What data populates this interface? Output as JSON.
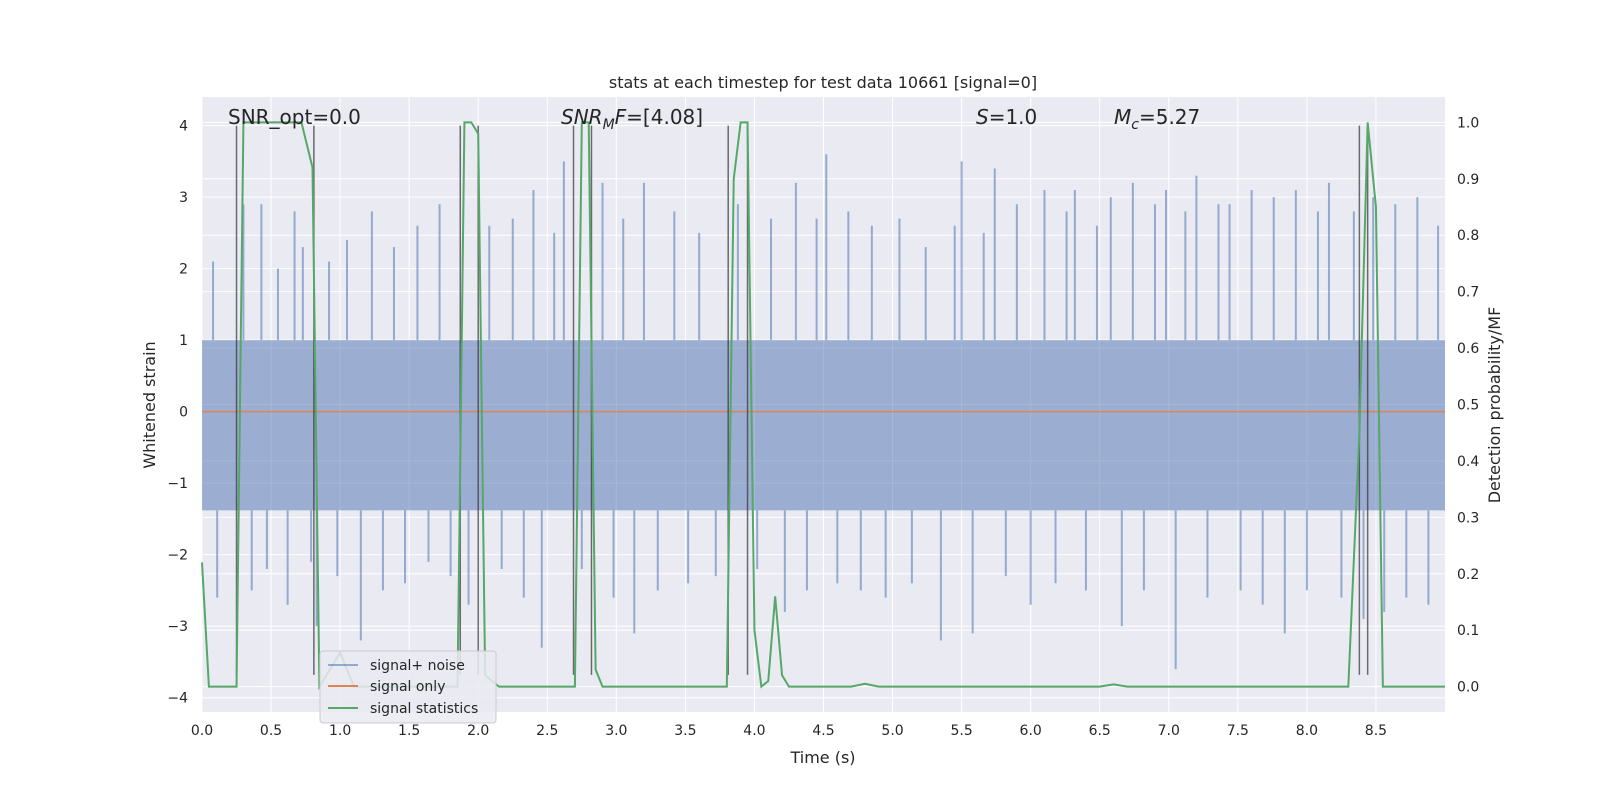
{
  "chart_data": {
    "type": "line",
    "title": "stats at each timestep for test data 10661 [signal=0]",
    "xlabel": "Time (s)",
    "ylabel_left": "Whitened strain",
    "ylabel_right": "Detection probability/MF",
    "xlim": [
      0.0,
      9.0
    ],
    "ylim_left": [
      -4.2,
      4.4
    ],
    "ylim_right": [
      -0.045,
      1.045
    ],
    "x_ticks": [
      0.0,
      0.5,
      1.0,
      1.5,
      2.0,
      2.5,
      3.0,
      3.5,
      4.0,
      4.5,
      5.0,
      5.5,
      6.0,
      6.5,
      7.0,
      7.5,
      8.0,
      8.5
    ],
    "x_tick_labels": [
      "0.0",
      "0.5",
      "1.0",
      "1.5",
      "2.0",
      "2.5",
      "3.0",
      "3.5",
      "4.0",
      "4.5",
      "5.0",
      "5.5",
      "6.0",
      "6.5",
      "7.0",
      "7.5",
      "8.0",
      "8.5"
    ],
    "y_left_ticks": [
      -4,
      -3,
      -2,
      -1,
      0,
      1,
      2,
      3,
      4
    ],
    "y_left_tick_labels": [
      "−4",
      "−3",
      "−2",
      "−1",
      "0",
      "1",
      "2",
      "3",
      "4"
    ],
    "y_right_ticks": [
      0.0,
      0.1,
      0.2,
      0.3,
      0.4,
      0.5,
      0.6,
      0.7,
      0.8,
      0.9,
      1.0
    ],
    "y_right_tick_labels": [
      "0.0",
      "0.1",
      "0.2",
      "0.3",
      "0.4",
      "0.5",
      "0.6",
      "0.7",
      "0.8",
      "0.9",
      "1.0"
    ],
    "annotations": [
      {
        "text": "SNR_opt=0.0",
        "x": 0.2,
        "y": 4.05
      },
      {
        "text_main": "SNR",
        "text_sub": "M",
        "text_rest": "F=[4.08]",
        "x": 2.6,
        "y": 4.05
      },
      {
        "text_main": "S",
        "text_rest": "=1.0",
        "x": 5.6,
        "y": 4.05
      },
      {
        "text_main": "M",
        "text_sub": "c",
        "text_rest": "=5.27",
        "x": 6.6,
        "y": 4.05
      }
    ],
    "vlines": [
      0.25,
      0.81,
      1.87,
      2.0,
      2.69,
      2.82,
      3.81,
      3.95,
      8.38,
      8.44
    ],
    "series": [
      {
        "name": "signal+ noise",
        "color": "#4c72b0",
        "band_low": -1.38,
        "band_high": 1.0,
        "spikes": [
          {
            "t": 0.08,
            "v": 2.1
          },
          {
            "t": 0.11,
            "v": -2.6
          },
          {
            "t": 0.3,
            "v": 2.9
          },
          {
            "t": 0.36,
            "v": -2.5
          },
          {
            "t": 0.43,
            "v": 2.9
          },
          {
            "t": 0.47,
            "v": -2.2
          },
          {
            "t": 0.55,
            "v": 2.0
          },
          {
            "t": 0.62,
            "v": -2.7
          },
          {
            "t": 0.67,
            "v": 2.8
          },
          {
            "t": 0.73,
            "v": 2.3
          },
          {
            "t": 0.79,
            "v": -2.1
          },
          {
            "t": 0.83,
            "v": -3.0
          },
          {
            "t": 0.92,
            "v": 2.1
          },
          {
            "t": 0.98,
            "v": -2.3
          },
          {
            "t": 1.05,
            "v": 2.4
          },
          {
            "t": 1.15,
            "v": -3.2
          },
          {
            "t": 1.23,
            "v": 2.8
          },
          {
            "t": 1.31,
            "v": -2.5
          },
          {
            "t": 1.39,
            "v": 2.3
          },
          {
            "t": 1.47,
            "v": -2.4
          },
          {
            "t": 1.56,
            "v": 2.6
          },
          {
            "t": 1.64,
            "v": -2.1
          },
          {
            "t": 1.72,
            "v": 2.9
          },
          {
            "t": 1.8,
            "v": -2.3
          },
          {
            "t": 1.93,
            "v": -2.7
          },
          {
            "t": 2.08,
            "v": 2.6
          },
          {
            "t": 2.17,
            "v": -2.2
          },
          {
            "t": 2.25,
            "v": 2.7
          },
          {
            "t": 2.33,
            "v": -2.6
          },
          {
            "t": 2.4,
            "v": 3.1
          },
          {
            "t": 2.46,
            "v": -3.3
          },
          {
            "t": 2.55,
            "v": 2.5
          },
          {
            "t": 2.62,
            "v": 3.5
          },
          {
            "t": 2.75,
            "v": -2.2
          },
          {
            "t": 2.9,
            "v": 3.2
          },
          {
            "t": 2.98,
            "v": -2.6
          },
          {
            "t": 3.05,
            "v": 2.7
          },
          {
            "t": 3.13,
            "v": -3.1
          },
          {
            "t": 3.2,
            "v": 3.2
          },
          {
            "t": 3.3,
            "v": -2.5
          },
          {
            "t": 3.42,
            "v": 2.8
          },
          {
            "t": 3.52,
            "v": -2.4
          },
          {
            "t": 3.6,
            "v": 2.5
          },
          {
            "t": 3.72,
            "v": -2.3
          },
          {
            "t": 3.88,
            "v": 2.9
          },
          {
            "t": 4.02,
            "v": -2.2
          },
          {
            "t": 4.12,
            "v": 2.7
          },
          {
            "t": 4.22,
            "v": -2.8
          },
          {
            "t": 4.3,
            "v": 3.2
          },
          {
            "t": 4.38,
            "v": -2.5
          },
          {
            "t": 4.45,
            "v": 2.7
          },
          {
            "t": 4.52,
            "v": 3.6
          },
          {
            "t": 4.6,
            "v": -2.4
          },
          {
            "t": 4.68,
            "v": 2.8
          },
          {
            "t": 4.77,
            "v": -2.5
          },
          {
            "t": 4.85,
            "v": 2.6
          },
          {
            "t": 4.95,
            "v": -2.6
          },
          {
            "t": 5.05,
            "v": 2.7
          },
          {
            "t": 5.14,
            "v": -2.4
          },
          {
            "t": 5.24,
            "v": 2.3
          },
          {
            "t": 5.35,
            "v": -3.2
          },
          {
            "t": 5.45,
            "v": 2.6
          },
          {
            "t": 5.5,
            "v": 3.5
          },
          {
            "t": 5.58,
            "v": -3.1
          },
          {
            "t": 5.66,
            "v": 2.5
          },
          {
            "t": 5.74,
            "v": 3.4
          },
          {
            "t": 5.82,
            "v": -2.3
          },
          {
            "t": 5.9,
            "v": 2.9
          },
          {
            "t": 6.0,
            "v": -2.7
          },
          {
            "t": 6.1,
            "v": 3.1
          },
          {
            "t": 6.18,
            "v": -2.4
          },
          {
            "t": 6.26,
            "v": 2.8
          },
          {
            "t": 6.32,
            "v": 3.1
          },
          {
            "t": 6.4,
            "v": -2.5
          },
          {
            "t": 6.48,
            "v": 2.6
          },
          {
            "t": 6.58,
            "v": 3.0
          },
          {
            "t": 6.66,
            "v": -3.0
          },
          {
            "t": 6.74,
            "v": 3.2
          },
          {
            "t": 6.82,
            "v": -2.5
          },
          {
            "t": 6.9,
            "v": 2.9
          },
          {
            "t": 6.98,
            "v": 3.1
          },
          {
            "t": 7.05,
            "v": -3.6
          },
          {
            "t": 7.12,
            "v": 2.8
          },
          {
            "t": 7.2,
            "v": 3.3
          },
          {
            "t": 7.28,
            "v": -2.6
          },
          {
            "t": 7.36,
            "v": 2.9
          },
          {
            "t": 7.44,
            "v": 2.9
          },
          {
            "t": 7.52,
            "v": -2.5
          },
          {
            "t": 7.6,
            "v": 3.1
          },
          {
            "t": 7.68,
            "v": -2.7
          },
          {
            "t": 7.76,
            "v": 3.0
          },
          {
            "t": 7.84,
            "v": -3.1
          },
          {
            "t": 7.92,
            "v": 3.1
          },
          {
            "t": 8.0,
            "v": -2.5
          },
          {
            "t": 8.08,
            "v": 2.8
          },
          {
            "t": 8.16,
            "v": 3.2
          },
          {
            "t": 8.25,
            "v": -2.6
          },
          {
            "t": 8.34,
            "v": 2.8
          },
          {
            "t": 8.41,
            "v": -2.9
          },
          {
            "t": 8.48,
            "v": 3.0
          },
          {
            "t": 8.56,
            "v": -2.8
          },
          {
            "t": 8.64,
            "v": 2.9
          },
          {
            "t": 8.72,
            "v": -2.6
          },
          {
            "t": 8.8,
            "v": 3.0
          },
          {
            "t": 8.88,
            "v": -2.7
          },
          {
            "t": 8.95,
            "v": 2.6
          }
        ]
      },
      {
        "name": "signal only",
        "color": "#dd8452",
        "x": [
          0.0,
          9.0
        ],
        "y": [
          0.0,
          0.0
        ]
      },
      {
        "name": "signal statistics",
        "color": "#55a868",
        "axis": "right",
        "x": [
          0.0,
          0.05,
          0.25,
          0.3,
          0.4,
          0.5,
          0.6,
          0.72,
          0.8,
          0.85,
          1.0,
          1.1,
          1.85,
          1.9,
          1.95,
          2.0,
          2.05,
          2.15,
          2.3,
          2.5,
          2.7,
          2.75,
          2.8,
          2.85,
          2.9,
          3.0,
          3.5,
          3.8,
          3.85,
          3.9,
          3.95,
          4.0,
          4.05,
          4.1,
          4.15,
          4.2,
          4.25,
          4.3,
          4.5,
          4.7,
          4.8,
          4.9,
          5.0,
          6.5,
          6.6,
          6.7,
          7.0,
          8.0,
          8.3,
          8.38,
          8.44,
          8.5,
          8.55,
          8.6,
          9.0
        ],
        "y": [
          0.22,
          0.0,
          0.0,
          1.0,
          1.0,
          1.0,
          1.0,
          1.0,
          0.92,
          0.0,
          0.06,
          0.0,
          0.0,
          1.0,
          1.0,
          0.98,
          0.02,
          0.0,
          0.0,
          0.0,
          0.0,
          1.0,
          1.0,
          0.03,
          0.0,
          0.0,
          0.0,
          0.0,
          0.9,
          1.0,
          1.0,
          0.1,
          0.0,
          0.01,
          0.16,
          0.02,
          0.0,
          0.0,
          0.0,
          0.0,
          0.005,
          0.0,
          0.0,
          0.0,
          0.004,
          0.0,
          0.0,
          0.0,
          0.0,
          0.45,
          1.0,
          0.85,
          0.0,
          0.0,
          0.0
        ]
      }
    ],
    "legend": {
      "placement": "bottom-left",
      "entries": [
        "signal+ noise",
        "signal only",
        "signal statistics"
      ]
    }
  },
  "colors": {
    "axes_bg": "#eaeaf2",
    "grid": "#ffffff",
    "vline": "#333333"
  }
}
